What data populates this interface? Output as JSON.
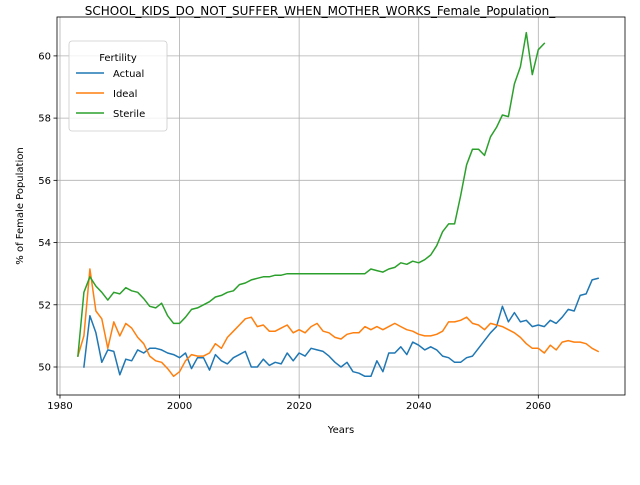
{
  "chart_data": {
    "type": "line",
    "title": "SCHOOL_KIDS_DO_NOT_SUFFER_WHEN_MOTHER_WORKS_Female_Population_",
    "xlabel": "Years",
    "ylabel": "% of Female Population",
    "xlim": [
      1979.5,
      2074.5
    ],
    "ylim": [
      49.1,
      61.25
    ],
    "xticks": [
      1980,
      2000,
      2020,
      2040,
      2060
    ],
    "xtick_labels": [
      "1980",
      "2000",
      "2020",
      "2040",
      "2060"
    ],
    "yticks": [
      50,
      52,
      54,
      56,
      58,
      60
    ],
    "ytick_labels": [
      "50",
      "52",
      "54",
      "56",
      "58",
      "60"
    ],
    "grid": true,
    "legend": {
      "title": "Fertility",
      "placement": "top-left"
    },
    "series": [
      {
        "name": "Actual",
        "color": "#1f77b4",
        "x": [
          1984,
          1985,
          1986,
          1987,
          1988,
          1989,
          1990,
          1991,
          1992,
          1993,
          1994,
          1995,
          1996,
          1997,
          1998,
          1999,
          2000,
          2001,
          2002,
          2003,
          2004,
          2005,
          2006,
          2007,
          2008,
          2009,
          2010,
          2011,
          2012,
          2013,
          2014,
          2015,
          2016,
          2017,
          2018,
          2019,
          2020,
          2021,
          2022,
          2023,
          2024,
          2025,
          2026,
          2027,
          2028,
          2029,
          2030,
          2031,
          2032,
          2033,
          2034,
          2035,
          2036,
          2037,
          2038,
          2039,
          2040,
          2041,
          2042,
          2043,
          2044,
          2045,
          2046,
          2047,
          2048,
          2049,
          2050,
          2051,
          2052,
          2053,
          2054,
          2055,
          2056,
          2057,
          2058,
          2059,
          2060,
          2061,
          2062,
          2063,
          2064,
          2065,
          2066,
          2067,
          2068,
          2069,
          2070
        ],
        "y": [
          50.0,
          51.65,
          51.1,
          50.15,
          50.55,
          50.5,
          49.75,
          50.25,
          50.2,
          50.55,
          50.45,
          50.6,
          50.6,
          50.55,
          50.45,
          50.4,
          50.3,
          50.45,
          49.95,
          50.3,
          50.3,
          49.9,
          50.4,
          50.2,
          50.1,
          50.3,
          50.4,
          50.5,
          50.0,
          50.0,
          50.25,
          50.05,
          50.15,
          50.1,
          50.45,
          50.2,
          50.45,
          50.35,
          50.6,
          50.55,
          50.5,
          50.35,
          50.15,
          50.0,
          50.15,
          49.85,
          49.8,
          49.7,
          49.7,
          50.2,
          49.85,
          50.45,
          50.45,
          50.65,
          50.4,
          50.8,
          50.7,
          50.55,
          50.65,
          50.55,
          50.35,
          50.3,
          50.15,
          50.15,
          50.3,
          50.35,
          50.6,
          50.85,
          51.1,
          51.3,
          51.95,
          51.45,
          51.75,
          51.45,
          51.5,
          51.3,
          51.35,
          51.3,
          51.5,
          51.4,
          51.6,
          51.85,
          51.8,
          52.3,
          52.35,
          52.8,
          52.85
        ]
      },
      {
        "name": "Ideal",
        "color": "#ff7f0e",
        "x": [
          1983,
          1984,
          1985,
          1986,
          1987,
          1988,
          1989,
          1990,
          1991,
          1992,
          1993,
          1994,
          1995,
          1996,
          1997,
          1998,
          1999,
          2000,
          2001,
          2002,
          2003,
          2004,
          2005,
          2006,
          2007,
          2008,
          2009,
          2010,
          2011,
          2012,
          2013,
          2014,
          2015,
          2016,
          2017,
          2018,
          2019,
          2020,
          2021,
          2022,
          2023,
          2024,
          2025,
          2026,
          2027,
          2028,
          2029,
          2030,
          2031,
          2032,
          2033,
          2034,
          2035,
          2036,
          2037,
          2038,
          2039,
          2040,
          2041,
          2042,
          2043,
          2044,
          2045,
          2046,
          2047,
          2048,
          2049,
          2050,
          2051,
          2052,
          2053,
          2054,
          2055,
          2056,
          2057,
          2058,
          2059,
          2060,
          2061,
          2062,
          2063,
          2064,
          2065,
          2066,
          2067,
          2068,
          2069,
          2070
        ],
        "y": [
          50.35,
          51.0,
          53.15,
          51.8,
          51.55,
          50.6,
          51.45,
          51.0,
          51.4,
          51.25,
          50.95,
          50.75,
          50.35,
          50.2,
          50.15,
          49.95,
          49.7,
          49.85,
          50.2,
          50.4,
          50.35,
          50.35,
          50.45,
          50.75,
          50.6,
          50.95,
          51.15,
          51.35,
          51.55,
          51.6,
          51.3,
          51.35,
          51.15,
          51.15,
          51.25,
          51.35,
          51.1,
          51.2,
          51.1,
          51.3,
          51.4,
          51.15,
          51.1,
          50.95,
          50.9,
          51.05,
          51.1,
          51.1,
          51.3,
          51.2,
          51.3,
          51.2,
          51.3,
          51.4,
          51.3,
          51.2,
          51.15,
          51.05,
          51.0,
          51.0,
          51.05,
          51.15,
          51.45,
          51.45,
          51.5,
          51.6,
          51.4,
          51.35,
          51.2,
          51.4,
          51.35,
          51.3,
          51.2,
          51.1,
          50.95,
          50.75,
          50.6,
          50.6,
          50.45,
          50.7,
          50.55,
          50.8,
          50.85,
          50.8,
          50.8,
          50.75,
          50.6,
          50.5
        ]
      },
      {
        "name": "Sterile",
        "color": "#2ca02c",
        "x": [
          1983,
          1984,
          1985,
          1986,
          1987,
          1988,
          1989,
          1990,
          1991,
          1992,
          1993,
          1994,
          1995,
          1996,
          1997,
          1998,
          1999,
          2000,
          2001,
          2002,
          2003,
          2004,
          2005,
          2006,
          2007,
          2008,
          2009,
          2010,
          2011,
          2012,
          2013,
          2014,
          2015,
          2016,
          2017,
          2018,
          2019,
          2020,
          2021,
          2022,
          2023,
          2024,
          2025,
          2026,
          2027,
          2028,
          2029,
          2030,
          2031,
          2032,
          2033,
          2034,
          2035,
          2036,
          2037,
          2038,
          2039,
          2040,
          2041,
          2042,
          2043,
          2044,
          2045,
          2046,
          2047,
          2048,
          2049,
          2050,
          2051,
          2052,
          2053,
          2054,
          2055,
          2056,
          2057,
          2058,
          2059,
          2060,
          2061
        ],
        "y": [
          50.35,
          52.4,
          52.9,
          52.6,
          52.4,
          52.15,
          52.4,
          52.35,
          52.55,
          52.45,
          52.4,
          52.2,
          51.95,
          51.9,
          52.05,
          51.65,
          51.4,
          51.4,
          51.6,
          51.85,
          51.9,
          52.0,
          52.1,
          52.25,
          52.3,
          52.4,
          52.45,
          52.65,
          52.7,
          52.8,
          52.85,
          52.9,
          52.9,
          52.95,
          52.95,
          53.0,
          53.0,
          53.0,
          53.0,
          53.0,
          53.0,
          53.0,
          53.0,
          53.0,
          53.0,
          53.0,
          53.0,
          53.0,
          53.0,
          53.15,
          53.1,
          53.05,
          53.15,
          53.2,
          53.35,
          53.3,
          53.4,
          53.35,
          53.45,
          53.6,
          53.9,
          54.35,
          54.6,
          54.6,
          55.5,
          56.5,
          57.0,
          57.0,
          56.8,
          57.4,
          57.7,
          58.1,
          58.05,
          59.1,
          59.65,
          60.75,
          59.4,
          60.2,
          60.4
        ]
      }
    ]
  }
}
